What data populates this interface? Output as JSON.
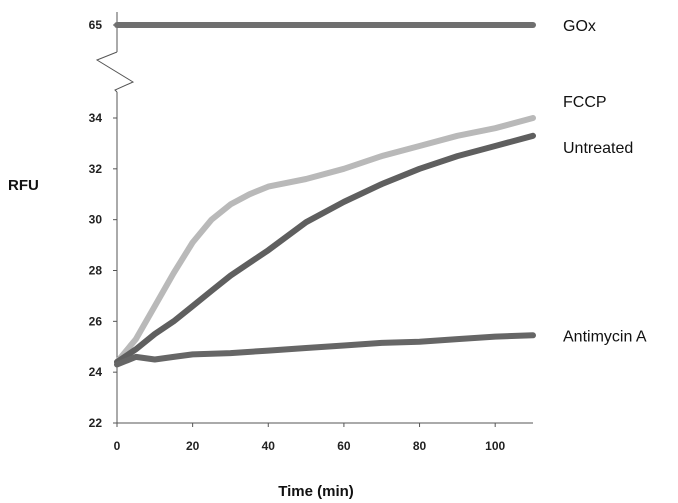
{
  "chart_data": {
    "type": "line",
    "xlabel": "Time (min)",
    "ylabel": "RFU",
    "xlim": [
      0,
      110
    ],
    "ylim": [
      22,
      34
    ],
    "x_ticks": [
      0,
      20,
      40,
      60,
      80,
      100
    ],
    "y_ticks": [
      22,
      24,
      26,
      28,
      30,
      32,
      34
    ],
    "axis_break": {
      "upper_tick": 65
    },
    "grid": false,
    "legend": "direct labels at right end of each line",
    "series": [
      {
        "name": "GOx",
        "color": "#6f6f6f",
        "x": [
          0,
          110
        ],
        "y": [
          65,
          65
        ]
      },
      {
        "name": "FCCP",
        "color": "#b9b9b9",
        "x": [
          0,
          5,
          10,
          15,
          20,
          25,
          30,
          35,
          40,
          50,
          60,
          70,
          80,
          90,
          100,
          110
        ],
        "y": [
          24.4,
          25.3,
          26.6,
          27.9,
          29.1,
          30.0,
          30.6,
          31.0,
          31.3,
          31.6,
          32.0,
          32.5,
          32.9,
          33.3,
          33.6,
          34.0
        ]
      },
      {
        "name": "Untreated",
        "color": "#5f5f5f",
        "x": [
          0,
          5,
          10,
          15,
          20,
          25,
          30,
          35,
          40,
          50,
          60,
          70,
          80,
          90,
          100,
          110
        ],
        "y": [
          24.4,
          24.9,
          25.5,
          26.0,
          26.6,
          27.2,
          27.8,
          28.3,
          28.8,
          29.9,
          30.7,
          31.4,
          32.0,
          32.5,
          32.9,
          33.3
        ]
      },
      {
        "name": "Antimycin A",
        "color": "#666666",
        "x": [
          0,
          5,
          10,
          15,
          20,
          30,
          40,
          50,
          60,
          70,
          80,
          90,
          100,
          110
        ],
        "y": [
          24.3,
          24.6,
          24.5,
          24.6,
          24.7,
          24.75,
          24.85,
          24.95,
          25.05,
          25.15,
          25.2,
          25.3,
          25.4,
          25.45
        ]
      }
    ]
  }
}
